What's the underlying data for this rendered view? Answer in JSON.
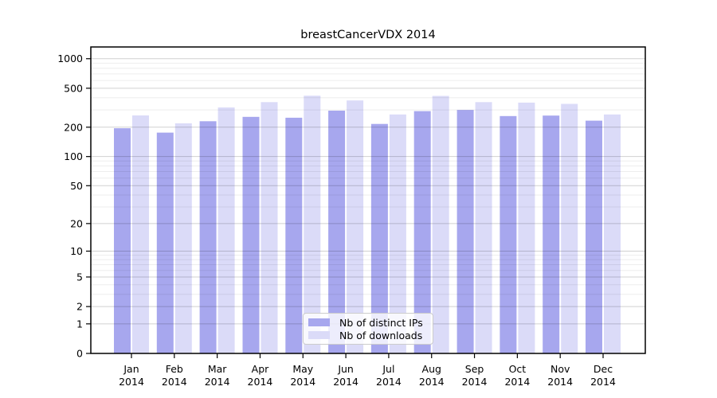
{
  "title": "breastCancerVDX 2014",
  "chart_data": {
    "type": "bar",
    "title": "breastCancerVDX 2014",
    "categories": [
      "Jan",
      "Feb",
      "Mar",
      "Apr",
      "May",
      "Jun",
      "Jul",
      "Aug",
      "Sep",
      "Oct",
      "Nov",
      "Dec"
    ],
    "category_year": "2014",
    "series": [
      {
        "name": "Nb of distinct IPs",
        "color": "#a7a7ee",
        "values": [
          195,
          176,
          230,
          255,
          250,
          295,
          216,
          292,
          300,
          260,
          263,
          233
        ]
      },
      {
        "name": "Nb of downloads",
        "color": "#dbdbf8",
        "values": [
          264,
          219,
          318,
          361,
          420,
          375,
          270,
          417,
          361,
          357,
          346,
          270
        ]
      }
    ],
    "yscale": "log10(1+x)",
    "y_major_ticks": [
      0,
      1,
      2,
      5,
      10,
      20,
      50,
      100,
      200,
      500,
      1000
    ],
    "y_minor_ticks": [
      3,
      4,
      6,
      7,
      8,
      9,
      30,
      40,
      60,
      70,
      80,
      90,
      300,
      400,
      600,
      700,
      800,
      900
    ],
    "ylim": [
      0,
      1318
    ],
    "xlabel": "",
    "ylabel": "",
    "grid": true,
    "legend_position": "lower center",
    "colors": {
      "major_grid": "rgba(0,0,0,0.18)",
      "minor_grid": "rgba(0,0,0,0.07)",
      "spine": "#000000",
      "background": "#ffffff"
    }
  }
}
